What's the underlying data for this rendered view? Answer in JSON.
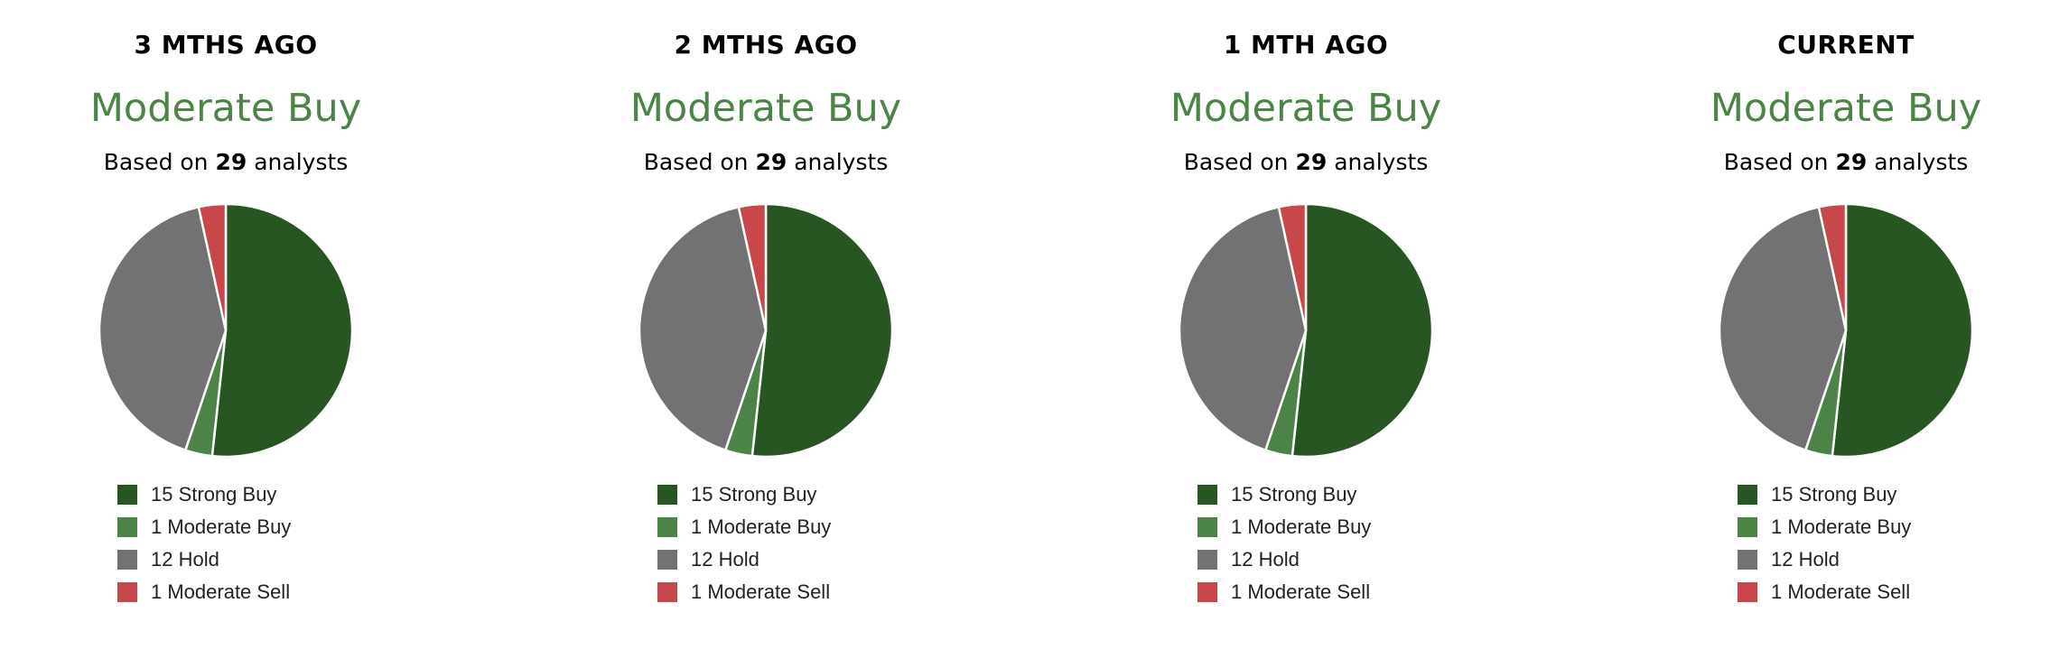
{
  "colors": {
    "strong_buy": "#275622",
    "moderate_buy": "#4b8446",
    "hold": "#727272",
    "moderate_sell": "#c8474a",
    "consensus_text": "#4b8446"
  },
  "chart_data": [
    {
      "type": "pie",
      "title": "3 MTHS AGO",
      "consensus": "Moderate Buy",
      "based_on_prefix": "Based on",
      "analysts": "29",
      "based_on_suffix": "analysts",
      "categories": [
        "Strong Buy",
        "Moderate Buy",
        "Hold",
        "Moderate Sell"
      ],
      "values": [
        15,
        1,
        12,
        1
      ],
      "legend": [
        "15 Strong Buy",
        "1 Moderate Buy",
        "12 Hold",
        "1 Moderate Sell"
      ],
      "legend_placement": "bottom"
    },
    {
      "type": "pie",
      "title": "2 MTHS AGO",
      "consensus": "Moderate Buy",
      "based_on_prefix": "Based on",
      "analysts": "29",
      "based_on_suffix": "analysts",
      "categories": [
        "Strong Buy",
        "Moderate Buy",
        "Hold",
        "Moderate Sell"
      ],
      "values": [
        15,
        1,
        12,
        1
      ],
      "legend": [
        "15 Strong Buy",
        "1 Moderate Buy",
        "12 Hold",
        "1 Moderate Sell"
      ],
      "legend_placement": "bottom"
    },
    {
      "type": "pie",
      "title": "1 MTH AGO",
      "consensus": "Moderate Buy",
      "based_on_prefix": "Based on",
      "analysts": "29",
      "based_on_suffix": "analysts",
      "categories": [
        "Strong Buy",
        "Moderate Buy",
        "Hold",
        "Moderate Sell"
      ],
      "values": [
        15,
        1,
        12,
        1
      ],
      "legend": [
        "15 Strong Buy",
        "1 Moderate Buy",
        "12 Hold",
        "1 Moderate Sell"
      ],
      "legend_placement": "bottom"
    },
    {
      "type": "pie",
      "title": "CURRENT",
      "consensus": "Moderate Buy",
      "based_on_prefix": "Based on",
      "analysts": "29",
      "based_on_suffix": "analysts",
      "categories": [
        "Strong Buy",
        "Moderate Buy",
        "Hold",
        "Moderate Sell"
      ],
      "values": [
        15,
        1,
        12,
        1
      ],
      "legend": [
        "15 Strong Buy",
        "1 Moderate Buy",
        "12 Hold",
        "1 Moderate Sell"
      ],
      "legend_placement": "bottom"
    }
  ]
}
